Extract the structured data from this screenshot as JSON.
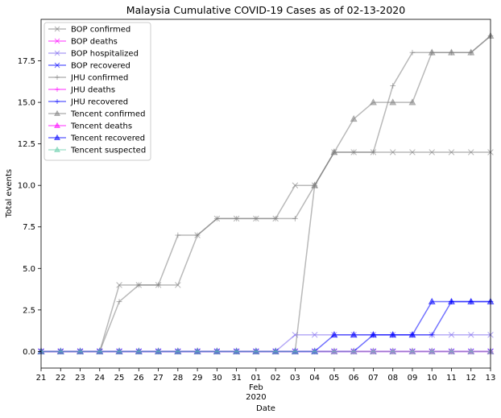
{
  "chart_data": {
    "type": "line",
    "title": "Malaysia Cumulative COVID-19 Cases as of 02-13-2020",
    "xlabel": "Date",
    "ylabel": "Total events",
    "ylim": [
      -1,
      20
    ],
    "yticks": [
      "0.0",
      "2.5",
      "5.0",
      "7.5",
      "10.0",
      "12.5",
      "15.0",
      "17.5"
    ],
    "ytick_values": [
      0,
      2.5,
      5,
      7.5,
      10,
      12.5,
      15,
      17.5
    ],
    "x": [
      "2020-01-21",
      "2020-01-22",
      "2020-01-23",
      "2020-01-24",
      "2020-01-25",
      "2020-01-26",
      "2020-01-27",
      "2020-01-28",
      "2020-01-29",
      "2020-01-30",
      "2020-01-31",
      "2020-02-01",
      "2020-02-02",
      "2020-02-03",
      "2020-02-04",
      "2020-02-05",
      "2020-02-06",
      "2020-02-07",
      "2020-02-08",
      "2020-02-09",
      "2020-02-10",
      "2020-02-11",
      "2020-02-12",
      "2020-02-13"
    ],
    "xtick_labels": [
      "21",
      "22",
      "23",
      "24",
      "25",
      "26",
      "27",
      "28",
      "29",
      "30",
      "31",
      "01",
      "02",
      "03",
      "04",
      "05",
      "06",
      "07",
      "08",
      "09",
      "10",
      "11",
      "12",
      "13"
    ],
    "xtick_month_label": "Feb",
    "xtick_year_label": "2020",
    "legend_position": "top-left",
    "grid": false,
    "series": [
      {
        "name": "BOP confirmed",
        "color": "#808080",
        "marker": "x",
        "values": [
          0,
          0,
          0,
          0,
          4,
          4,
          4,
          4,
          7,
          8,
          8,
          8,
          8,
          10,
          10,
          12,
          12,
          12,
          12,
          12,
          12,
          12,
          12,
          12
        ]
      },
      {
        "name": "BOP deaths",
        "color": "#ff00ff",
        "marker": "x",
        "values": [
          0,
          0,
          0,
          0,
          0,
          0,
          0,
          0,
          0,
          0,
          0,
          0,
          0,
          0,
          0,
          0,
          0,
          0,
          0,
          0,
          0,
          0,
          0,
          0
        ]
      },
      {
        "name": "BOP hospitalized",
        "color": "#7b68ee",
        "marker": "x",
        "values": [
          0,
          0,
          0,
          0,
          0,
          0,
          0,
          0,
          0,
          0,
          0,
          0,
          0,
          1,
          1,
          1,
          1,
          1,
          1,
          1,
          1,
          1,
          1,
          1
        ]
      },
      {
        "name": "BOP recovered",
        "color": "#0000ff",
        "marker": "x",
        "values": [
          0,
          0,
          0,
          0,
          0,
          0,
          0,
          0,
          0,
          0,
          0,
          0,
          0,
          0,
          0,
          0,
          0,
          0,
          0,
          0,
          0,
          0,
          0,
          0
        ]
      },
      {
        "name": "JHU confirmed",
        "color": "#808080",
        "marker": "+",
        "values": [
          0,
          0,
          0,
          0,
          3,
          4,
          4,
          7,
          7,
          8,
          8,
          8,
          8,
          8,
          10,
          12,
          12,
          12,
          16,
          18,
          18,
          18,
          18,
          19
        ]
      },
      {
        "name": "JHU deaths",
        "color": "#ff00ff",
        "marker": "+",
        "values": [
          0,
          0,
          0,
          0,
          0,
          0,
          0,
          0,
          0,
          0,
          0,
          0,
          0,
          0,
          0,
          0,
          0,
          0,
          0,
          0,
          0,
          0,
          0,
          0
        ]
      },
      {
        "name": "JHU recovered",
        "color": "#0000ff",
        "marker": "+",
        "values": [
          0,
          0,
          0,
          0,
          0,
          0,
          0,
          0,
          0,
          0,
          0,
          0,
          0,
          0,
          0,
          0,
          0,
          1,
          1,
          1,
          1,
          3,
          3,
          3
        ]
      },
      {
        "name": "Tencent confirmed",
        "color": "#808080",
        "marker": "^",
        "values": [
          0,
          0,
          0,
          0,
          0,
          0,
          0,
          0,
          0,
          0,
          0,
          0,
          0,
          0,
          10,
          12,
          14,
          15,
          15,
          15,
          18,
          18,
          18,
          19
        ]
      },
      {
        "name": "Tencent deaths",
        "color": "#ff00ff",
        "marker": "^",
        "values": [
          0,
          0,
          0,
          0,
          0,
          0,
          0,
          0,
          0,
          0,
          0,
          0,
          0,
          0,
          0,
          0,
          0,
          0,
          0,
          0,
          0,
          0,
          0,
          0
        ]
      },
      {
        "name": "Tencent recovered",
        "color": "#0000ff",
        "marker": "^",
        "values": [
          0,
          0,
          0,
          0,
          0,
          0,
          0,
          0,
          0,
          0,
          0,
          0,
          0,
          0,
          0,
          1,
          1,
          1,
          1,
          1,
          3,
          3,
          3,
          3
        ]
      },
      {
        "name": "Tencent suspected",
        "color": "#66cdaa",
        "marker": "^",
        "values": [
          0,
          0,
          0,
          0,
          0,
          0,
          0,
          0,
          0,
          0,
          0,
          0,
          0,
          0,
          0,
          0,
          0,
          0,
          0,
          0,
          0,
          0,
          0,
          0
        ]
      }
    ]
  }
}
